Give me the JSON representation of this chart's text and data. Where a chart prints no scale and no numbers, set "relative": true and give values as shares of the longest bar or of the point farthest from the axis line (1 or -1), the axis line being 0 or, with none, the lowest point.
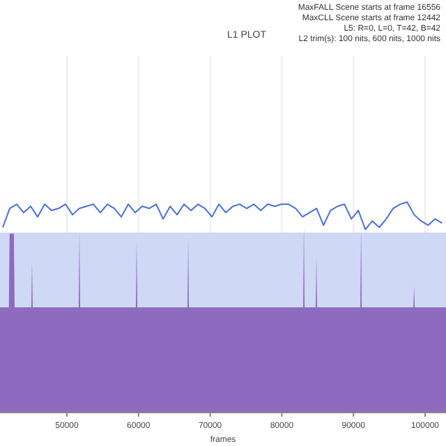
{
  "chart_data": {
    "type": "line",
    "title": "L1 PLOT",
    "xlabel": "frames",
    "relative": true,
    "grid": "x",
    "annotations": [
      "MaxFALL Scene starts at frame 16556",
      "MaxCLL Scene starts at frame 12442",
      "L5: R=0, L=0, T=42, B=42",
      "L2 trim(s): 100 nits, 600 nits, 1000 nits"
    ],
    "xlim": [
      40660,
      102920
    ],
    "xticks": [
      50000,
      60000,
      70000,
      80000,
      90000,
      100000
    ],
    "series": [
      {
        "type": "area",
        "color": "#cfd8f5",
        "x": [
          40660,
          102920
        ],
        "values": [
          0.855,
          0.855
        ]
      },
      {
        "type": "line",
        "color": "#4a6fdc",
        "x": [
          41050,
          42020,
          42990,
          43970,
          44940,
          45910,
          46890,
          47860,
          48830,
          49810,
          50780,
          51750,
          52730,
          53700,
          54670,
          55650,
          56620,
          57590,
          58570,
          59540,
          60510,
          61490,
          62460,
          63430,
          64410,
          65380,
          66350,
          67330,
          68300,
          69270,
          70250,
          71220,
          72190,
          73170,
          74140,
          75110,
          76090,
          77060,
          78030,
          79010,
          79980,
          80950,
          81930,
          82900,
          83870,
          84850,
          85820,
          86790,
          87770,
          88740,
          89710,
          90690,
          91660,
          92630,
          93610,
          94580,
          95550,
          96530,
          97500,
          98470,
          99450,
          100420,
          101390,
          102370
        ],
        "values": [
          0.88,
          0.97,
          0.99,
          0.95,
          0.98,
          0.93,
          0.99,
          0.96,
          0.97,
          0.99,
          0.94,
          0.97,
          0.98,
          0.99,
          0.95,
          0.99,
          0.97,
          0.93,
          0.99,
          0.95,
          0.98,
          0.97,
          0.99,
          0.92,
          0.98,
          0.94,
          0.99,
          0.96,
          0.99,
          0.97,
          0.93,
          0.99,
          0.95,
          0.98,
          0.99,
          0.97,
          0.99,
          0.96,
          0.99,
          0.98,
          0.99,
          0.99,
          0.97,
          0.93,
          0.95,
          0.97,
          0.89,
          0.96,
          0.98,
          0.99,
          0.92,
          0.96,
          0.87,
          0.91,
          0.88,
          0.92,
          0.97,
          0.99,
          1.0,
          0.94,
          0.91,
          0.89,
          0.92,
          0.9
        ]
      },
      {
        "type": "area",
        "color": "#8e6bbf",
        "x": [
          40660,
          41900,
          42000,
          42600,
          42700,
          45030,
          45130,
          45230,
          51650,
          51750,
          51850,
          59630,
          59730,
          59830,
          66830,
          66930,
          67030,
          82980,
          83080,
          83180,
          84730,
          84830,
          84930,
          90960,
          91060,
          91160,
          98360,
          98460,
          98560,
          102920
        ],
        "values": [
          0.5,
          0.5,
          0.85,
          0.85,
          0.5,
          0.5,
          0.715,
          0.5,
          0.5,
          0.86,
          0.5,
          0.5,
          0.82,
          0.5,
          0.5,
          0.83,
          0.5,
          0.5,
          0.89,
          0.5,
          0.5,
          0.74,
          0.5,
          0.5,
          0.89,
          0.5,
          0.5,
          0.6,
          0.5,
          0.5
        ]
      }
    ]
  }
}
